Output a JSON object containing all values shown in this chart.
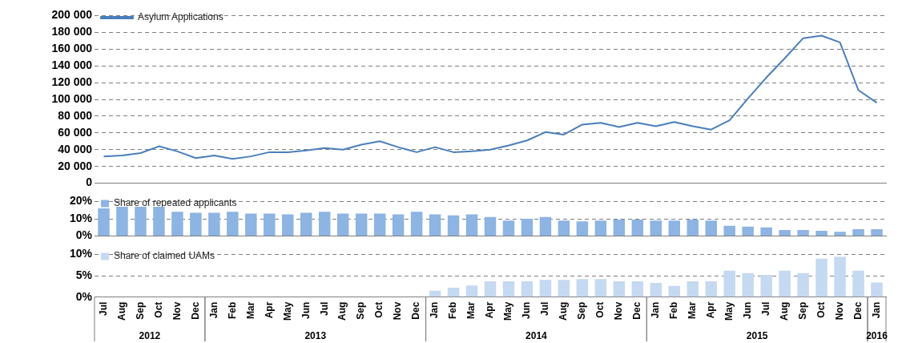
{
  "chart_data": [
    {
      "type": "line",
      "categories": [
        null,
        null,
        null,
        null,
        null,
        null,
        null,
        null,
        null,
        null,
        null,
        null,
        null,
        null,
        null,
        null,
        null,
        null,
        null,
        null,
        null,
        null,
        null,
        null,
        null,
        null,
        null,
        null,
        null,
        null,
        null,
        null,
        null,
        null,
        null,
        null,
        null,
        null,
        null,
        null,
        null,
        null,
        null
      ],
      "series": [
        {
          "name": "Asylum Applications",
          "color": "#4a7ebb",
          "values": [
            32000,
            33000,
            36000,
            44000,
            38000,
            30000,
            33000,
            29000,
            32000,
            37000,
            37000,
            39000,
            42000,
            40000,
            46000,
            50000,
            43000,
            37000,
            43000,
            37000,
            38000,
            40000,
            45000,
            51000,
            61000,
            58000,
            70000,
            72000,
            67000,
            72000,
            68000,
            73000,
            68000,
            64000,
            75000,
            101000,
            126000,
            149000,
            173000,
            176000,
            168000,
            111000,
            96000
          ]
        }
      ],
      "ylim": [
        0,
        200000
      ],
      "yticks": [
        {
          "value": 0,
          "label": "0"
        },
        {
          "value": 20000,
          "label": "20 000"
        },
        {
          "value": 40000,
          "label": "40 000"
        },
        {
          "value": 60000,
          "label": "60 000"
        },
        {
          "value": 80000,
          "label": "80 000"
        },
        {
          "value": 100000,
          "label": "100 000"
        },
        {
          "value": 120000,
          "label": "120 000"
        },
        {
          "value": 140000,
          "label": "140 000"
        },
        {
          "value": 160000,
          "label": "160 000"
        },
        {
          "value": 180000,
          "label": "180 000"
        },
        {
          "value": 200000,
          "label": "200 000"
        }
      ],
      "grid": "y",
      "legend": "top left",
      "marker": "none",
      "tick_labels": "y"
    },
    {
      "type": "bar",
      "categories": [
        null,
        null,
        null,
        null,
        null,
        null,
        null,
        null,
        null,
        null,
        null,
        null,
        null,
        null,
        null,
        null,
        null,
        null,
        null,
        null,
        null,
        null,
        null,
        null,
        null,
        null,
        null,
        null,
        null,
        null,
        null,
        null,
        null,
        null,
        null,
        null,
        null,
        null,
        null,
        null,
        null,
        null,
        null
      ],
      "series": [
        {
          "name": "Share of repeated applicants",
          "color": "#8db4e2",
          "values": [
            16,
            17,
            17,
            17,
            14,
            13.5,
            13.5,
            14,
            13,
            13,
            12.5,
            13.5,
            14,
            13,
            13,
            13,
            12.5,
            14,
            12.5,
            12,
            12.5,
            11,
            9,
            10,
            11,
            9,
            8.5,
            9,
            9.5,
            9.5,
            9,
            9,
            9.5,
            9,
            6,
            5.5,
            5,
            3.5,
            3.5,
            3,
            2.5,
            4,
            4
          ]
        }
      ],
      "ylim": [
        0,
        20
      ],
      "yticks": [
        {
          "value": 0,
          "label": "0%"
        },
        {
          "value": 10,
          "label": "10%"
        },
        {
          "value": 20,
          "label": "20%"
        }
      ],
      "grid": "y",
      "legend": "top left",
      "tick_labels": "y"
    },
    {
      "type": "bar",
      "categories": [
        "Jul",
        "Aug",
        "Sep",
        "Oct",
        "Nov",
        "Dec",
        "Jan",
        "Feb",
        "Mar",
        "Apr",
        "May",
        "Jun",
        "Jul",
        "Aug",
        "Sep",
        "Oct",
        "Nov",
        "Dec",
        "Jan",
        "Feb",
        "Mar",
        "Apr",
        "May",
        "Jun",
        "Jul",
        "Aug",
        "Sep",
        "Oct",
        "Nov",
        "Dec",
        "Jan",
        "Feb",
        "Mar",
        "Apr",
        "May",
        "Jun",
        "Jul",
        "Aug",
        "Sep",
        "Oct",
        "Nov",
        "Dec",
        "Jan"
      ],
      "series": [
        {
          "name": "Share of claimed UAMs",
          "color": "#c5d9f1",
          "values": [
            null,
            null,
            null,
            null,
            null,
            null,
            null,
            null,
            null,
            null,
            null,
            null,
            null,
            null,
            null,
            null,
            null,
            null,
            1.5,
            2.2,
            2.7,
            3.7,
            3.7,
            3.7,
            4,
            4,
            4.2,
            4.2,
            3.7,
            3.7,
            3.3,
            2.6,
            3.7,
            3.7,
            6.2,
            5.6,
            5.2,
            6.2,
            5.6,
            9,
            9.4,
            6.2,
            3.4
          ]
        }
      ],
      "ylim": [
        0,
        10
      ],
      "yticks": [
        {
          "value": 0,
          "label": "0%"
        },
        {
          "value": 5,
          "label": "5%"
        },
        {
          "value": 10,
          "label": "10%"
        }
      ],
      "grid": "y",
      "legend": "top left",
      "annotations": [
        "2012",
        "2013",
        "2014",
        "2015",
        "2016"
      ]
    }
  ]
}
